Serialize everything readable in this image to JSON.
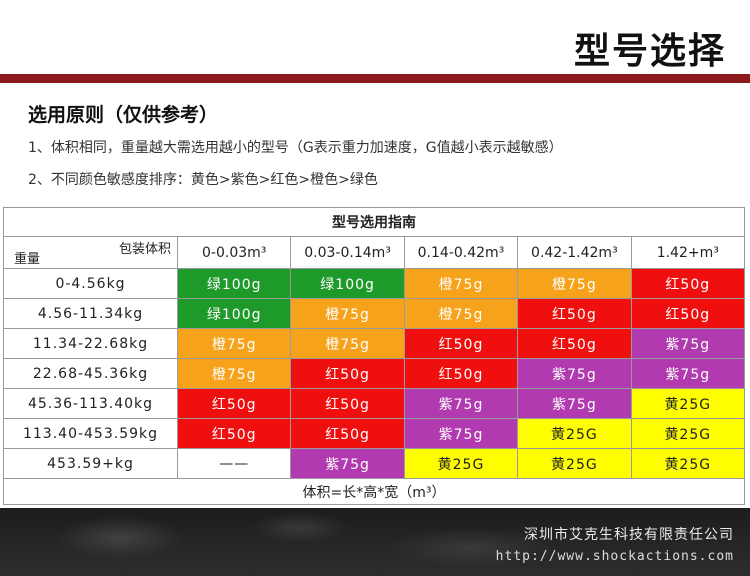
{
  "page": {
    "title": "型号选择",
    "section_heading": "选用原则（仅供参考）",
    "rule1": "1、体积相同，重量越大需选用越小的型号（G表示重力加速度，G值越小表示越敏感）",
    "rule2": "2、不同颜色敏感度排序：黄色>紫色>红色>橙色>绿色"
  },
  "table": {
    "caption": "型号选用指南",
    "corner_top": "包装体积",
    "corner_bottom": "重量",
    "volume_headers": [
      "0-0.03m³",
      "0.03-0.14m³",
      "0.14-0.42m³",
      "0.42-1.42m³",
      "1.42+m³"
    ],
    "rows": [
      {
        "weight": "0-4.56kg",
        "cells": [
          {
            "text": "绿100g",
            "color": "green"
          },
          {
            "text": "绿100g",
            "color": "green"
          },
          {
            "text": "橙75g",
            "color": "orange"
          },
          {
            "text": "橙75g",
            "color": "orange"
          },
          {
            "text": "红50g",
            "color": "red"
          }
        ]
      },
      {
        "weight": "4.56-11.34kg",
        "cells": [
          {
            "text": "绿100g",
            "color": "green"
          },
          {
            "text": "橙75g",
            "color": "orange"
          },
          {
            "text": "橙75g",
            "color": "orange"
          },
          {
            "text": "红50g",
            "color": "red"
          },
          {
            "text": "红50g",
            "color": "red"
          }
        ]
      },
      {
        "weight": "11.34-22.68kg",
        "cells": [
          {
            "text": "橙75g",
            "color": "orange"
          },
          {
            "text": "橙75g",
            "color": "orange"
          },
          {
            "text": "红50g",
            "color": "red"
          },
          {
            "text": "红50g",
            "color": "red"
          },
          {
            "text": "紫75g",
            "color": "purple"
          }
        ]
      },
      {
        "weight": "22.68-45.36kg",
        "cells": [
          {
            "text": "橙75g",
            "color": "orange"
          },
          {
            "text": "红50g",
            "color": "red"
          },
          {
            "text": "红50g",
            "color": "red"
          },
          {
            "text": "紫75g",
            "color": "purple"
          },
          {
            "text": "紫75g",
            "color": "purple"
          }
        ]
      },
      {
        "weight": "45.36-113.40kg",
        "cells": [
          {
            "text": "红50g",
            "color": "red"
          },
          {
            "text": "红50g",
            "color": "red"
          },
          {
            "text": "紫75g",
            "color": "purple"
          },
          {
            "text": "紫75g",
            "color": "purple"
          },
          {
            "text": "黄25G",
            "color": "yellow"
          }
        ]
      },
      {
        "weight": "113.40-453.59kg",
        "cells": [
          {
            "text": "红50g",
            "color": "red"
          },
          {
            "text": "红50g",
            "color": "red"
          },
          {
            "text": "紫75g",
            "color": "purple"
          },
          {
            "text": "黄25G",
            "color": "yellow"
          },
          {
            "text": "黄25G",
            "color": "yellow"
          }
        ]
      },
      {
        "weight": "453.59+kg",
        "cells": [
          {
            "text": "——",
            "color": "empty"
          },
          {
            "text": "紫75g",
            "color": "purple"
          },
          {
            "text": "黄25G",
            "color": "yellow"
          },
          {
            "text": "黄25G",
            "color": "yellow"
          },
          {
            "text": "黄25G",
            "color": "yellow"
          }
        ]
      }
    ],
    "footer_note": "体积=长*高*宽（m³）"
  },
  "colors": {
    "green": "#1e9a2a",
    "orange": "#f7a21b",
    "red": "#f00f0f",
    "purple": "#b13ab0",
    "yellow": "#fefe00",
    "empty": "#ffffff",
    "brand_bar": "#8b1a1d"
  },
  "footer": {
    "company": "深圳市艾克生科技有限责任公司",
    "url": "http://www.shockactions.com"
  }
}
